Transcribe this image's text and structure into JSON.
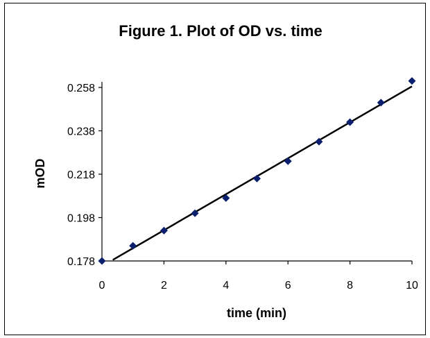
{
  "chart_data": {
    "type": "scatter",
    "title": "Figure 1.  Plot of OD vs. time",
    "xlabel": "time (min)",
    "ylabel": "mOD",
    "xlim": [
      0,
      10
    ],
    "ylim": [
      0.178,
      0.258
    ],
    "xticks": [
      0,
      2,
      4,
      6,
      8,
      10
    ],
    "xtick_labels": [
      "0",
      "2",
      "4",
      "6",
      "8",
      "10"
    ],
    "yticks": [
      0.178,
      0.198,
      0.218,
      0.238,
      0.258
    ],
    "ytick_labels": [
      "0.178",
      "0.198",
      "0.218",
      "0.238",
      "0.258"
    ],
    "grid": false,
    "series": [
      {
        "x": [
          0,
          1,
          2,
          3,
          4,
          5,
          6,
          7,
          8,
          9,
          10
        ],
        "y": [
          0.178,
          0.185,
          0.192,
          0.2,
          0.207,
          0.216,
          0.224,
          0.233,
          0.242,
          0.251,
          0.261
        ],
        "marker": "diamond",
        "color": "#0a1f6e"
      }
    ],
    "trendline": {
      "type": "linear",
      "x": [
        0.35,
        10
      ],
      "y": [
        0.1785,
        0.2585
      ],
      "color": "#000000"
    }
  }
}
